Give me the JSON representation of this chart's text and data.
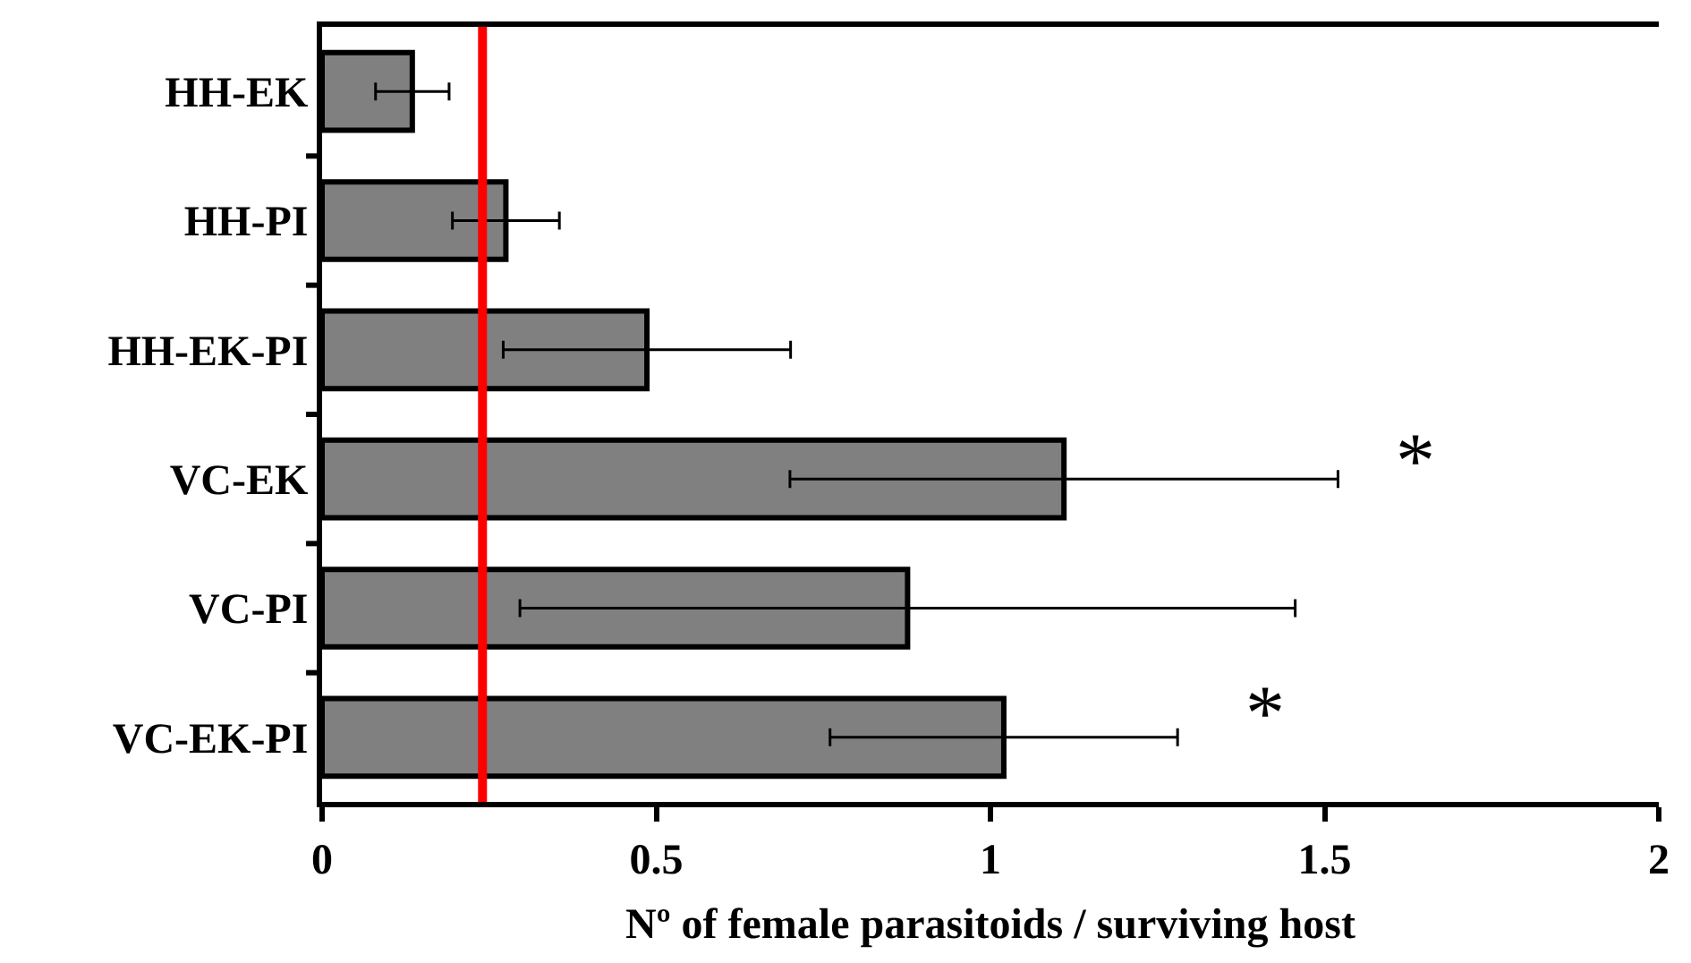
{
  "chart_data": {
    "type": "bar",
    "orientation": "horizontal",
    "xlabel": "Nº of female parasitoids / surviving host",
    "categories": [
      "HH-EK",
      "HH-PI",
      "HH-EK-PI",
      "VC-EK",
      "VC-PI",
      "VC-EK-PI"
    ],
    "series": [
      {
        "color": "#808080",
        "values": [
          0.135,
          0.275,
          0.486,
          1.11,
          0.876,
          1.02
        ],
        "errors": [
          0.055,
          0.08,
          0.215,
          0.41,
          0.58,
          0.26
        ]
      }
    ],
    "xlim": [
      0,
      2
    ],
    "xticks": [
      0,
      0.5,
      1,
      1.5,
      2
    ],
    "ref_lines": [
      {
        "axis": "x",
        "value": 0.24,
        "color": "#ff0000"
      }
    ],
    "annotations": [
      "*",
      "*"
    ]
  }
}
